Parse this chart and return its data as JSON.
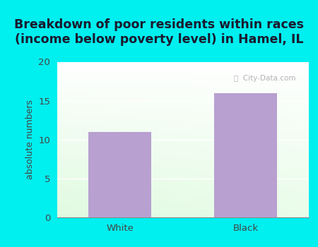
{
  "categories": [
    "White",
    "Black"
  ],
  "values": [
    11.0,
    16.0
  ],
  "bar_color": "#b8a0d0",
  "title": "Breakdown of poor residents within races\n(income below poverty level) in Hamel, IL",
  "ylabel": "absolute numbers",
  "ylim": [
    0,
    20
  ],
  "yticks": [
    0,
    5,
    10,
    15,
    20
  ],
  "background_outer": "#00efef",
  "background_plot_grad_top": "#f5fff5",
  "background_plot_grad_bottom": "#e0f5e0",
  "title_fontsize": 12.5,
  "title_color": "#1a1a2e",
  "axis_label_fontsize": 9,
  "tick_fontsize": 9.5,
  "bar_width": 0.5,
  "watermark": "City-Data.com",
  "watermark_color": "#aaaaaa"
}
